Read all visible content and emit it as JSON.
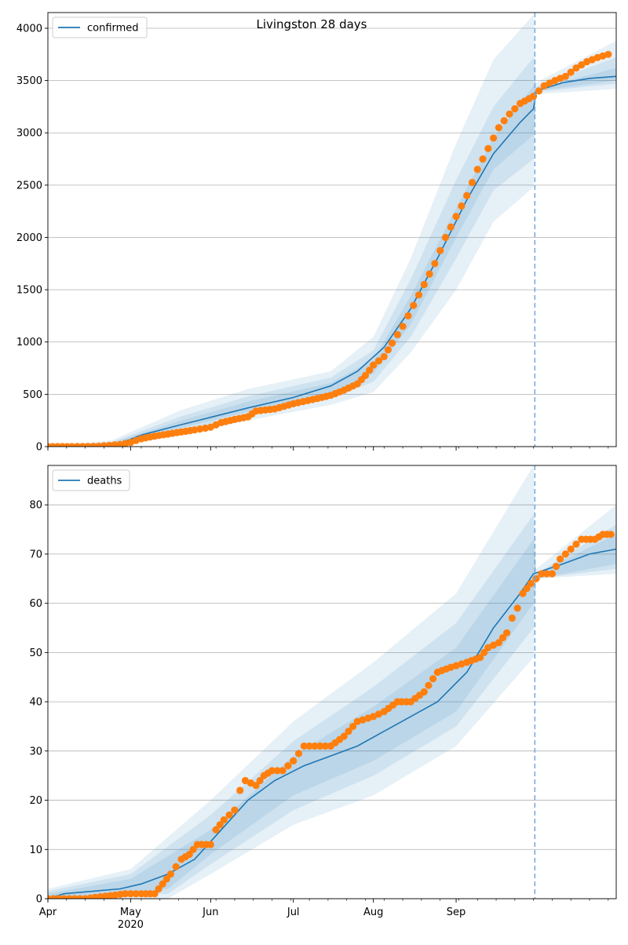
{
  "title": "Livingston 28 days",
  "chart_data": [
    {
      "type": "line",
      "title": "Livingston 28 days",
      "legend": {
        "label": "confirmed",
        "placement": "top-left"
      },
      "x_tick_labels": [
        "Apr",
        "May",
        "Jun",
        "Jul",
        "Aug",
        "Sep"
      ],
      "x_year_label": "2020",
      "ylim": [
        0,
        4150
      ],
      "y_ticks": [
        0,
        500,
        1000,
        1500,
        2000,
        2500,
        3000,
        3500,
        4000
      ],
      "grid": "horizontal",
      "forecast_start": "2020-08-30",
      "fit_line": [
        [
          "2020-03-01",
          0
        ],
        [
          "2020-03-20",
          5
        ],
        [
          "2020-03-28",
          30
        ],
        [
          "2020-04-05",
          110
        ],
        [
          "2020-04-20",
          210
        ],
        [
          "2020-05-01",
          280
        ],
        [
          "2020-05-15",
          370
        ],
        [
          "2020-06-01",
          470
        ],
        [
          "2020-06-15",
          580
        ],
        [
          "2020-06-25",
          720
        ],
        [
          "2020-07-05",
          950
        ],
        [
          "2020-07-15",
          1320
        ],
        [
          "2020-07-25",
          1800
        ],
        [
          "2020-08-05",
          2360
        ],
        [
          "2020-08-15",
          2800
        ],
        [
          "2020-08-25",
          3100
        ],
        [
          "2020-08-30",
          3230
        ],
        [
          "2020-08-31",
          3400
        ],
        [
          "2020-09-10",
          3480
        ],
        [
          "2020-09-20",
          3520
        ],
        [
          "2020-09-30",
          3540
        ]
      ],
      "bands": [
        {
          "lower": [
            [
              "2020-03-01",
              0
            ],
            [
              "2020-03-25",
              0
            ],
            [
              "2020-04-20",
              110
            ],
            [
              "2020-05-15",
              250
            ],
            [
              "2020-06-15",
              400
            ],
            [
              "2020-07-01",
              520
            ],
            [
              "2020-07-15",
              900
            ],
            [
              "2020-08-01",
              1500
            ],
            [
              "2020-08-15",
              2150
            ],
            [
              "2020-08-30",
              2480
            ],
            [
              "2020-08-31",
              3370
            ],
            [
              "2020-09-30",
              3420
            ]
          ],
          "upper": [
            [
              "2020-03-01",
              0
            ],
            [
              "2020-03-25",
              60
            ],
            [
              "2020-04-20",
              350
            ],
            [
              "2020-05-15",
              550
            ],
            [
              "2020-06-15",
              720
            ],
            [
              "2020-07-01",
              1050
            ],
            [
              "2020-07-15",
              1800
            ],
            [
              "2020-08-01",
              2900
            ],
            [
              "2020-08-15",
              3700
            ],
            [
              "2020-08-30",
              4130
            ],
            [
              "2020-08-31",
              3480
            ],
            [
              "2020-09-30",
              3880
            ]
          ]
        },
        {
          "lower": [
            [
              "2020-03-01",
              0
            ],
            [
              "2020-03-25",
              5
            ],
            [
              "2020-04-20",
              150
            ],
            [
              "2020-05-15",
              300
            ],
            [
              "2020-06-15",
              460
            ],
            [
              "2020-07-01",
              620
            ],
            [
              "2020-07-15",
              1050
            ],
            [
              "2020-08-01",
              1800
            ],
            [
              "2020-08-15",
              2450
            ],
            [
              "2020-08-30",
              2750
            ],
            [
              "2020-08-31",
              3390
            ],
            [
              "2020-09-30",
              3470
            ]
          ],
          "upper": [
            [
              "2020-03-01",
              0
            ],
            [
              "2020-03-25",
              45
            ],
            [
              "2020-04-20",
              290
            ],
            [
              "2020-05-15",
              480
            ],
            [
              "2020-06-15",
              660
            ],
            [
              "2020-07-01",
              920
            ],
            [
              "2020-07-15",
              1600
            ],
            [
              "2020-08-01",
              2550
            ],
            [
              "2020-08-15",
              3250
            ],
            [
              "2020-08-30",
              3720
            ],
            [
              "2020-08-31",
              3440
            ],
            [
              "2020-09-30",
              3720
            ]
          ]
        },
        {
          "lower": [
            [
              "2020-03-01",
              0
            ],
            [
              "2020-03-25",
              12
            ],
            [
              "2020-04-20",
              180
            ],
            [
              "2020-05-15",
              335
            ],
            [
              "2020-06-15",
              510
            ],
            [
              "2020-07-01",
              700
            ],
            [
              "2020-07-15",
              1170
            ],
            [
              "2020-08-01",
              2000
            ],
            [
              "2020-08-15",
              2650
            ],
            [
              "2020-08-30",
              2980
            ],
            [
              "2020-08-31",
              3400
            ],
            [
              "2020-09-30",
              3500
            ]
          ],
          "upper": [
            [
              "2020-03-01",
              0
            ],
            [
              "2020-03-25",
              35
            ],
            [
              "2020-04-20",
              250
            ],
            [
              "2020-05-15",
              430
            ],
            [
              "2020-06-15",
              610
            ],
            [
              "2020-07-01",
              830
            ],
            [
              "2020-07-15",
              1440
            ],
            [
              "2020-08-01",
              2280
            ],
            [
              "2020-08-15",
              2950
            ],
            [
              "2020-08-30",
              3450
            ],
            [
              "2020-08-31",
              3420
            ],
            [
              "2020-09-30",
              3620
            ]
          ]
        }
      ],
      "observed": [
        [
          "2020-03-01",
          0
        ],
        [
          "2020-03-10",
          0
        ],
        [
          "2020-03-20",
          3
        ],
        [
          "2020-03-28",
          20
        ],
        [
          "2020-04-01",
          40
        ],
        [
          "2020-04-05",
          75
        ],
        [
          "2020-04-10",
          100
        ],
        [
          "2020-04-15",
          120
        ],
        [
          "2020-04-20",
          140
        ],
        [
          "2020-04-25",
          160
        ],
        [
          "2020-05-01",
          185
        ],
        [
          "2020-05-05",
          230
        ],
        [
          "2020-05-10",
          260
        ],
        [
          "2020-05-15",
          285
        ],
        [
          "2020-05-18",
          340
        ],
        [
          "2020-05-25",
          360
        ],
        [
          "2020-06-01",
          410
        ],
        [
          "2020-06-10",
          460
        ],
        [
          "2020-06-15",
          490
        ],
        [
          "2020-06-20",
          540
        ],
        [
          "2020-06-25",
          600
        ],
        [
          "2020-06-28",
          680
        ],
        [
          "2020-07-01",
          780
        ],
        [
          "2020-07-05",
          860
        ],
        [
          "2020-07-08",
          990
        ],
        [
          "2020-07-12",
          1150
        ],
        [
          "2020-07-16",
          1350
        ],
        [
          "2020-07-20",
          1550
        ],
        [
          "2020-07-24",
          1750
        ],
        [
          "2020-07-28",
          2000
        ],
        [
          "2020-08-01",
          2200
        ],
        [
          "2020-08-05",
          2400
        ],
        [
          "2020-08-09",
          2650
        ],
        [
          "2020-08-13",
          2850
        ],
        [
          "2020-08-17",
          3050
        ],
        [
          "2020-08-21",
          3180
        ],
        [
          "2020-08-25",
          3280
        ],
        [
          "2020-08-30",
          3350
        ],
        [
          "2020-09-03",
          3450
        ],
        [
          "2020-09-07",
          3500
        ],
        [
          "2020-09-11",
          3540
        ],
        [
          "2020-09-15",
          3620
        ],
        [
          "2020-09-19",
          3680
        ],
        [
          "2020-09-23",
          3720
        ],
        [
          "2020-09-27",
          3750
        ]
      ],
      "colors": {
        "line": "#1f77b4",
        "band": "#1f77b4",
        "observed": "#ff7f0e",
        "forecast_line": "#6fa8dc"
      }
    },
    {
      "type": "line",
      "legend": {
        "label": "deaths",
        "placement": "top-left"
      },
      "x_tick_labels": [
        "Apr",
        "May",
        "Jun",
        "Jul",
        "Aug",
        "Sep"
      ],
      "x_year_label": "2020",
      "ylim": [
        0,
        88
      ],
      "y_ticks": [
        0,
        10,
        20,
        30,
        40,
        50,
        60,
        70,
        80
      ],
      "grid": "horizontal",
      "forecast_start": "2020-08-30",
      "fit_line": [
        [
          "2020-03-01",
          0
        ],
        [
          "2020-03-07",
          1
        ],
        [
          "2020-03-28",
          2
        ],
        [
          "2020-04-05",
          3
        ],
        [
          "2020-04-15",
          5
        ],
        [
          "2020-04-25",
          8
        ],
        [
          "2020-05-05",
          14
        ],
        [
          "2020-05-15",
          20
        ],
        [
          "2020-05-25",
          24
        ],
        [
          "2020-06-05",
          27
        ],
        [
          "2020-06-15",
          29
        ],
        [
          "2020-06-25",
          31
        ],
        [
          "2020-07-05",
          34
        ],
        [
          "2020-07-15",
          37
        ],
        [
          "2020-07-25",
          40
        ],
        [
          "2020-08-05",
          46
        ],
        [
          "2020-08-15",
          55
        ],
        [
          "2020-08-25",
          62
        ],
        [
          "2020-08-30",
          66
        ],
        [
          "2020-09-10",
          68
        ],
        [
          "2020-09-20",
          70
        ],
        [
          "2020-09-30",
          71
        ]
      ],
      "bands": [
        {
          "lower": [
            [
              "2020-03-01",
              0
            ],
            [
              "2020-04-15",
              0
            ],
            [
              "2020-05-01",
              5
            ],
            [
              "2020-06-01",
              15
            ],
            [
              "2020-07-01",
              21
            ],
            [
              "2020-08-01",
              31
            ],
            [
              "2020-08-30",
              49
            ],
            [
              "2020-08-31",
              65
            ],
            [
              "2020-09-30",
              66
            ]
          ],
          "upper": [
            [
              "2020-03-01",
              2
            ],
            [
              "2020-04-01",
              6
            ],
            [
              "2020-05-01",
              20
            ],
            [
              "2020-06-01",
              36
            ],
            [
              "2020-07-01",
              48
            ],
            [
              "2020-08-01",
              62
            ],
            [
              "2020-08-30",
              88
            ],
            [
              "2020-08-31",
              67
            ],
            [
              "2020-09-30",
              80
            ]
          ]
        },
        {
          "lower": [
            [
              "2020-03-01",
              0
            ],
            [
              "2020-04-15",
              1
            ],
            [
              "2020-05-01",
              7
            ],
            [
              "2020-06-01",
              18
            ],
            [
              "2020-07-01",
              25
            ],
            [
              "2020-08-01",
              35
            ],
            [
              "2020-08-30",
              55
            ],
            [
              "2020-08-31",
              65
            ],
            [
              "2020-09-30",
              67
            ]
          ],
          "upper": [
            [
              "2020-03-01",
              1.5
            ],
            [
              "2020-04-01",
              5
            ],
            [
              "2020-05-01",
              17
            ],
            [
              "2020-06-01",
              32
            ],
            [
              "2020-07-01",
              43
            ],
            [
              "2020-08-01",
              56
            ],
            [
              "2020-08-30",
              78
            ],
            [
              "2020-08-31",
              66
            ],
            [
              "2020-09-30",
              76
            ]
          ]
        },
        {
          "lower": [
            [
              "2020-03-01",
              0
            ],
            [
              "2020-04-15",
              2
            ],
            [
              "2020-05-01",
              9
            ],
            [
              "2020-06-01",
              21
            ],
            [
              "2020-07-01",
              28
            ],
            [
              "2020-08-01",
              38
            ],
            [
              "2020-08-30",
              60
            ],
            [
              "2020-08-31",
              65
            ],
            [
              "2020-09-30",
              68
            ]
          ],
          "upper": [
            [
              "2020-03-01",
              1
            ],
            [
              "2020-04-01",
              4
            ],
            [
              "2020-05-01",
              14
            ],
            [
              "2020-06-01",
              29
            ],
            [
              "2020-07-01",
              39
            ],
            [
              "2020-08-01",
              51
            ],
            [
              "2020-08-30",
              73
            ],
            [
              "2020-08-31",
              66
            ],
            [
              "2020-09-30",
              74
            ]
          ]
        }
      ],
      "observed": [
        [
          "2020-03-01",
          0
        ],
        [
          "2020-03-15",
          0
        ],
        [
          "2020-03-30",
          1
        ],
        [
          "2020-04-05",
          1
        ],
        [
          "2020-04-10",
          1
        ],
        [
          "2020-04-13",
          3
        ],
        [
          "2020-04-16",
          5
        ],
        [
          "2020-04-20",
          8
        ],
        [
          "2020-04-23",
          9
        ],
        [
          "2020-04-26",
          11
        ],
        [
          "2020-05-01",
          11
        ],
        [
          "2020-05-03",
          14
        ],
        [
          "2020-05-06",
          16
        ],
        [
          "2020-05-10",
          18
        ],
        [
          "2020-05-12",
          22
        ],
        [
          "2020-05-14",
          24
        ],
        [
          "2020-05-18",
          23
        ],
        [
          "2020-05-21",
          25
        ],
        [
          "2020-05-24",
          26
        ],
        [
          "2020-05-28",
          26
        ],
        [
          "2020-06-01",
          28
        ],
        [
          "2020-06-05",
          31
        ],
        [
          "2020-06-15",
          31
        ],
        [
          "2020-06-20",
          33
        ],
        [
          "2020-06-25",
          36
        ],
        [
          "2020-07-01",
          37
        ],
        [
          "2020-07-05",
          38
        ],
        [
          "2020-07-10",
          40
        ],
        [
          "2020-07-15",
          40
        ],
        [
          "2020-07-20",
          42
        ],
        [
          "2020-07-25",
          46
        ],
        [
          "2020-07-30",
          47
        ],
        [
          "2020-08-05",
          48
        ],
        [
          "2020-08-10",
          49
        ],
        [
          "2020-08-13",
          51
        ],
        [
          "2020-08-17",
          52
        ],
        [
          "2020-08-20",
          54
        ],
        [
          "2020-08-22",
          57
        ],
        [
          "2020-08-24",
          59
        ],
        [
          "2020-08-26",
          62
        ],
        [
          "2020-08-29",
          64
        ],
        [
          "2020-09-02",
          66
        ],
        [
          "2020-09-06",
          66
        ],
        [
          "2020-09-09",
          69
        ],
        [
          "2020-09-13",
          71
        ],
        [
          "2020-09-17",
          73
        ],
        [
          "2020-09-22",
          73
        ],
        [
          "2020-09-25",
          74
        ],
        [
          "2020-09-28",
          74
        ]
      ],
      "colors": {
        "line": "#1f77b4",
        "band": "#1f77b4",
        "observed": "#ff7f0e",
        "forecast_line": "#6fa8dc"
      }
    }
  ]
}
